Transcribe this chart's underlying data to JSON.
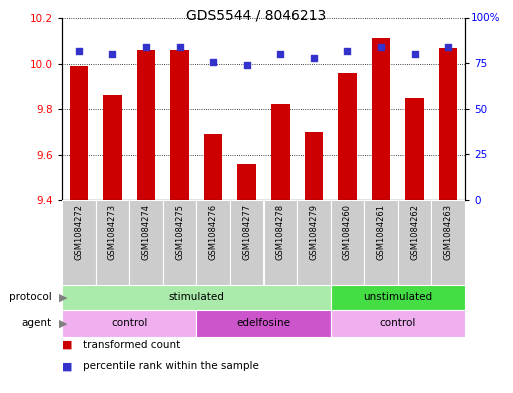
{
  "title": "GDS5544 / 8046213",
  "samples": [
    "GSM1084272",
    "GSM1084273",
    "GSM1084274",
    "GSM1084275",
    "GSM1084276",
    "GSM1084277",
    "GSM1084278",
    "GSM1084279",
    "GSM1084260",
    "GSM1084261",
    "GSM1084262",
    "GSM1084263"
  ],
  "transformed_count": [
    9.99,
    9.86,
    10.06,
    10.06,
    9.69,
    9.56,
    9.82,
    9.7,
    9.96,
    10.11,
    9.85,
    10.07
  ],
  "percentile_rank": [
    82,
    80,
    84,
    84,
    76,
    74,
    80,
    78,
    82,
    84,
    80,
    84
  ],
  "ylim_left": [
    9.4,
    10.2
  ],
  "ylim_right": [
    0,
    100
  ],
  "yticks_left": [
    9.4,
    9.6,
    9.8,
    10.0,
    10.2
  ],
  "yticks_right": [
    0,
    25,
    50,
    75,
    100
  ],
  "bar_color": "#cc0000",
  "dot_color": "#3333cc",
  "protocol_groups": [
    {
      "label": "stimulated",
      "start": 0,
      "end": 8,
      "color": "#aaeaaa"
    },
    {
      "label": "unstimulated",
      "start": 8,
      "end": 12,
      "color": "#44dd44"
    }
  ],
  "agent_groups": [
    {
      "label": "control",
      "start": 0,
      "end": 4,
      "color": "#f0b0f0"
    },
    {
      "label": "edelfosine",
      "start": 4,
      "end": 8,
      "color": "#cc55cc"
    },
    {
      "label": "control",
      "start": 8,
      "end": 12,
      "color": "#f0b0f0"
    }
  ],
  "xtick_bg_color": "#cccccc",
  "legend_bar_label": "transformed count",
  "legend_dot_label": "percentile rank within the sample",
  "protocol_label": "protocol",
  "agent_label": "agent",
  "title_fontsize": 10,
  "tick_fontsize": 7.5,
  "label_fontsize": 7.5,
  "bar_width": 0.55
}
